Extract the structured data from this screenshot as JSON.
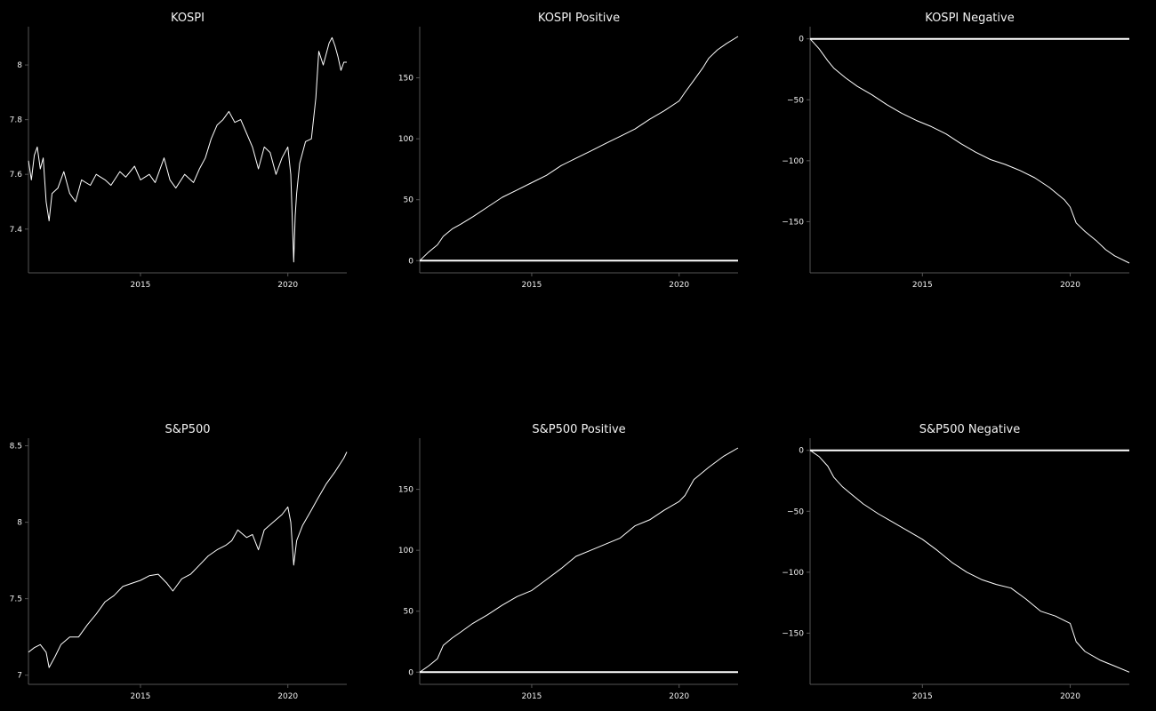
{
  "chart_data": [
    {
      "type": "line",
      "title": "KOSPI",
      "xlim": [
        2011.2,
        2022.0
      ],
      "ylim": [
        7.24,
        8.14
      ],
      "xticks": [
        2015,
        2020
      ],
      "xtick_labels": [
        "2015",
        "2020"
      ],
      "yticks": [
        7.4,
        7.6,
        7.8,
        8
      ],
      "ytick_labels": [
        "7.4",
        "7.6",
        "7.8",
        "8"
      ],
      "zero_line": false,
      "series": [
        {
          "x": [
            2011.2,
            2011.3,
            2011.4,
            2011.5,
            2011.6,
            2011.7,
            2011.8,
            2011.9,
            2012.0,
            2012.2,
            2012.4,
            2012.6,
            2012.8,
            2013.0,
            2013.3,
            2013.5,
            2013.8,
            2014.0,
            2014.3,
            2014.5,
            2014.8,
            2015.0,
            2015.3,
            2015.5,
            2015.8,
            2016.0,
            2016.2,
            2016.5,
            2016.8,
            2017.0,
            2017.2,
            2017.4,
            2017.6,
            2017.8,
            2018.0,
            2018.2,
            2018.4,
            2018.6,
            2018.8,
            2019.0,
            2019.2,
            2019.4,
            2019.6,
            2019.8,
            2020.0,
            2020.1,
            2020.2,
            2020.25,
            2020.3,
            2020.4,
            2020.6,
            2020.8,
            2020.95,
            2021.05,
            2021.2,
            2021.4,
            2021.5,
            2021.6,
            2021.7,
            2021.8,
            2021.9,
            2022.0
          ],
          "y": [
            7.65,
            7.58,
            7.67,
            7.7,
            7.62,
            7.66,
            7.5,
            7.43,
            7.53,
            7.55,
            7.61,
            7.53,
            7.5,
            7.58,
            7.56,
            7.6,
            7.58,
            7.56,
            7.61,
            7.59,
            7.63,
            7.58,
            7.6,
            7.57,
            7.66,
            7.58,
            7.55,
            7.6,
            7.57,
            7.62,
            7.66,
            7.73,
            7.78,
            7.8,
            7.83,
            7.79,
            7.8,
            7.75,
            7.7,
            7.62,
            7.7,
            7.68,
            7.6,
            7.66,
            7.7,
            7.6,
            7.28,
            7.45,
            7.53,
            7.64,
            7.72,
            7.73,
            7.88,
            8.05,
            8.0,
            8.08,
            8.1,
            8.07,
            8.03,
            7.98,
            8.01,
            8.01
          ]
        }
      ]
    },
    {
      "type": "line",
      "title": "KOSPI Positive",
      "xlim": [
        2011.2,
        2022.0
      ],
      "ylim": [
        -10,
        192
      ],
      "xticks": [
        2015,
        2020
      ],
      "xtick_labels": [
        "2015",
        "2020"
      ],
      "yticks": [
        0,
        50,
        100,
        150
      ],
      "ytick_labels": [
        "0",
        "50",
        "100",
        "150"
      ],
      "zero_line": true,
      "series": [
        {
          "x": [
            2011.2,
            2011.5,
            2011.8,
            2012.0,
            2012.3,
            2012.6,
            2013.0,
            2013.5,
            2014.0,
            2014.5,
            2015.0,
            2015.5,
            2016.0,
            2016.5,
            2017.0,
            2017.5,
            2018.0,
            2018.5,
            2019.0,
            2019.5,
            2020.0,
            2020.2,
            2020.5,
            2020.8,
            2021.0,
            2021.3,
            2021.6,
            2022.0
          ],
          "y": [
            0,
            7,
            13,
            20,
            26,
            30,
            36,
            44,
            52,
            58,
            64,
            70,
            78,
            84,
            90,
            96,
            102,
            108,
            116,
            123,
            131,
            138,
            148,
            158,
            166,
            173,
            178,
            184
          ]
        }
      ]
    },
    {
      "type": "line",
      "title": "KOSPI Negative",
      "xlim": [
        2011.2,
        2022.0
      ],
      "ylim": [
        -192,
        10
      ],
      "xticks": [
        2015,
        2020
      ],
      "xtick_labels": [
        "2015",
        "2020"
      ],
      "yticks": [
        0,
        -50,
        -100,
        -150
      ],
      "ytick_labels": [
        "0",
        "−50",
        "−100",
        "−150"
      ],
      "zero_line": true,
      "series": [
        {
          "x": [
            2011.2,
            2011.5,
            2011.8,
            2012.0,
            2012.4,
            2012.8,
            2013.3,
            2013.8,
            2014.3,
            2014.8,
            2015.3,
            2015.8,
            2016.3,
            2016.8,
            2017.3,
            2017.8,
            2018.3,
            2018.8,
            2019.3,
            2019.8,
            2020.0,
            2020.2,
            2020.5,
            2020.9,
            2021.2,
            2021.5,
            2022.0
          ],
          "y": [
            0,
            -8,
            -18,
            -24,
            -32,
            -39,
            -46,
            -54,
            -61,
            -67,
            -72,
            -78,
            -86,
            -93,
            -99,
            -103,
            -108,
            -114,
            -122,
            -132,
            -138,
            -151,
            -158,
            -166,
            -173,
            -178,
            -184
          ]
        }
      ]
    },
    {
      "type": "line",
      "title": "S&P500",
      "xlim": [
        2011.2,
        2022.0
      ],
      "ylim": [
        6.94,
        8.55
      ],
      "xticks": [
        2015,
        2020
      ],
      "xtick_labels": [
        "2015",
        "2020"
      ],
      "yticks": [
        7,
        7.5,
        8,
        8.5
      ],
      "ytick_labels": [
        "7",
        "7.5",
        "8",
        "8.5"
      ],
      "zero_line": false,
      "series": [
        {
          "x": [
            2011.2,
            2011.4,
            2011.6,
            2011.8,
            2011.9,
            2012.1,
            2012.3,
            2012.6,
            2012.9,
            2013.2,
            2013.5,
            2013.8,
            2014.1,
            2014.4,
            2014.7,
            2015.0,
            2015.3,
            2015.6,
            2015.9,
            2016.1,
            2016.4,
            2016.7,
            2017.0,
            2017.3,
            2017.6,
            2017.9,
            2018.1,
            2018.3,
            2018.6,
            2018.8,
            2019.0,
            2019.2,
            2019.5,
            2019.8,
            2020.0,
            2020.1,
            2020.2,
            2020.3,
            2020.5,
            2020.8,
            2021.0,
            2021.3,
            2021.6,
            2021.9,
            2022.0
          ],
          "y": [
            7.15,
            7.18,
            7.2,
            7.15,
            7.05,
            7.12,
            7.2,
            7.25,
            7.25,
            7.33,
            7.4,
            7.48,
            7.52,
            7.58,
            7.6,
            7.62,
            7.65,
            7.66,
            7.6,
            7.55,
            7.63,
            7.66,
            7.72,
            7.78,
            7.82,
            7.85,
            7.88,
            7.95,
            7.9,
            7.92,
            7.82,
            7.95,
            8.0,
            8.05,
            8.1,
            8.0,
            7.72,
            7.88,
            7.98,
            8.08,
            8.15,
            8.25,
            8.33,
            8.42,
            8.46
          ]
        }
      ]
    },
    {
      "type": "line",
      "title": "S&P500 Positive",
      "xlim": [
        2011.2,
        2022.0
      ],
      "ylim": [
        -10,
        192
      ],
      "xticks": [
        2015,
        2020
      ],
      "xtick_labels": [
        "2015",
        "2020"
      ],
      "yticks": [
        0,
        50,
        100,
        150
      ],
      "ytick_labels": [
        "0",
        "50",
        "100",
        "150"
      ],
      "zero_line": true,
      "series": [
        {
          "x": [
            2011.2,
            2011.5,
            2011.8,
            2012.0,
            2012.3,
            2012.6,
            2013.0,
            2013.5,
            2014.0,
            2014.5,
            2015.0,
            2015.5,
            2016.0,
            2016.5,
            2017.0,
            2017.5,
            2018.0,
            2018.5,
            2019.0,
            2019.5,
            2020.0,
            2020.2,
            2020.5,
            2021.0,
            2021.5,
            2022.0
          ],
          "y": [
            0,
            5,
            11,
            22,
            28,
            33,
            40,
            47,
            55,
            62,
            67,
            76,
            85,
            95,
            100,
            105,
            110,
            120,
            125,
            133,
            140,
            145,
            158,
            168,
            177,
            184
          ]
        }
      ]
    },
    {
      "type": "line",
      "title": "S&P500 Negative",
      "xlim": [
        2011.2,
        2022.0
      ],
      "ylim": [
        -192,
        10
      ],
      "xticks": [
        2015,
        2020
      ],
      "xtick_labels": [
        "2015",
        "2020"
      ],
      "yticks": [
        0,
        -50,
        -100,
        -150
      ],
      "ytick_labels": [
        "0",
        "−50",
        "−100",
        "−150"
      ],
      "zero_line": true,
      "series": [
        {
          "x": [
            2011.2,
            2011.5,
            2011.8,
            2012.0,
            2012.3,
            2012.6,
            2013.0,
            2013.5,
            2014.0,
            2014.5,
            2015.0,
            2015.5,
            2016.0,
            2016.5,
            2017.0,
            2017.5,
            2018.0,
            2018.5,
            2019.0,
            2019.5,
            2020.0,
            2020.2,
            2020.5,
            2021.0,
            2021.5,
            2022.0
          ],
          "y": [
            0,
            -5,
            -13,
            -22,
            -30,
            -36,
            -44,
            -52,
            -59,
            -66,
            -73,
            -82,
            -92,
            -100,
            -106,
            -110,
            -113,
            -122,
            -132,
            -136,
            -142,
            -157,
            -165,
            -172,
            -177,
            -182
          ]
        }
      ]
    }
  ]
}
